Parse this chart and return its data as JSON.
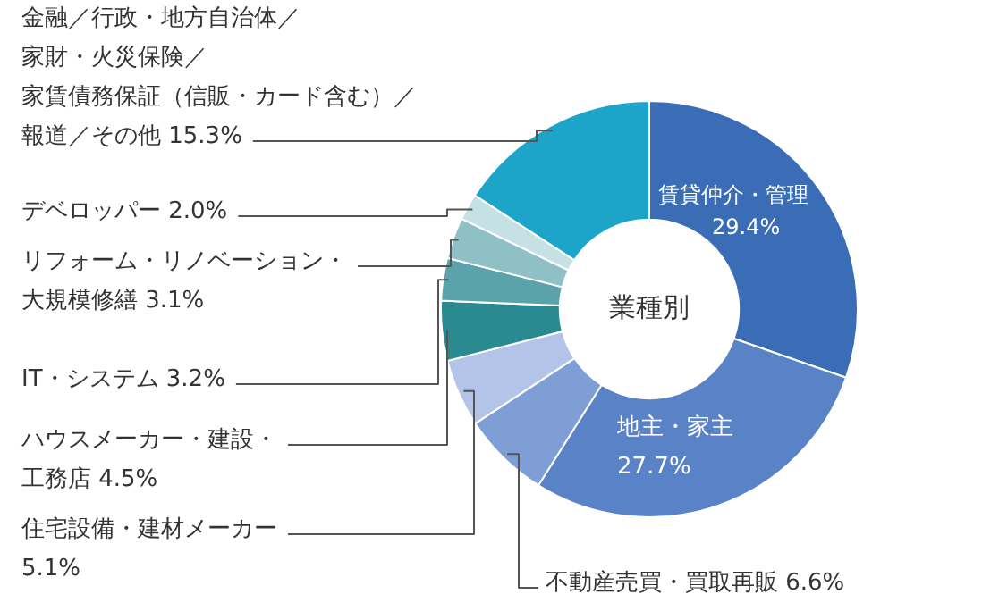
{
  "chart_data": {
    "type": "donut",
    "categories": [
      "賃貸仲介・管理",
      "地主・家主",
      "不動産売買・買取再販",
      "住宅設備・建材メーカー",
      "ハウスメーカー・建設・工務店",
      "IT・システム",
      "リフォーム・リノベーション・大規模修繕",
      "デベロッパー",
      "金融／行政・地方自治体／家財・火災保険／家賃債務保証（信販・カード含む）／報道／その他"
    ],
    "values": [
      29.4,
      27.7,
      6.6,
      5.1,
      4.5,
      3.2,
      3.1,
      2.0,
      15.3
    ],
    "colors": [
      "#3a6db5",
      "#5a82c6",
      "#7f9ed6",
      "#b4c4e8",
      "#2a8a90",
      "#5ba3aa",
      "#8fc0c6",
      "#c6e1e4",
      "#1ca5c9"
    ],
    "value_labels": [
      "29.4%",
      "27.7%",
      "6.6%",
      "5.1%",
      "4.5%",
      "3.2%",
      "3.1%",
      "2.0%",
      "15.3%"
    ],
    "annotations": [
      "業種別"
    ]
  }
}
